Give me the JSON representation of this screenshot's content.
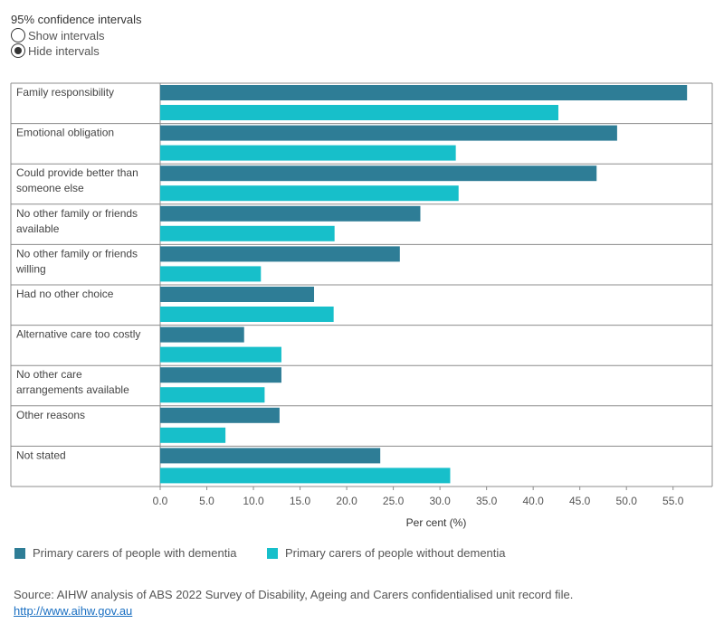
{
  "controls": {
    "title": "95% confidence intervals",
    "options": [
      {
        "label": "Show intervals",
        "selected": false
      },
      {
        "label": "Hide intervals",
        "selected": true
      }
    ]
  },
  "colors": {
    "dementia": "#2e7d96",
    "without_dementia": "#17bfca",
    "grid": "#cccccc",
    "axis": "#333333"
  },
  "chart_data": {
    "type": "bar",
    "orientation": "horizontal",
    "categories": [
      "Family responsibility",
      "Emotional obligation",
      "Could provide better than someone else",
      "No other family or friends available",
      "No other family or friends willing",
      "Had no other choice",
      "Alternative care too costly",
      "No other care arrangements available",
      "Other reasons",
      "Not stated"
    ],
    "category_lines": [
      [
        "Family responsibility"
      ],
      [
        "Emotional obligation"
      ],
      [
        "Could provide better than",
        "someone else"
      ],
      [
        "No other family or friends",
        "available"
      ],
      [
        "No other family or friends",
        "willing"
      ],
      [
        "Had no other choice"
      ],
      [
        "Alternative care too costly"
      ],
      [
        "No other care",
        "arrangements available"
      ],
      [
        "Other reasons"
      ],
      [
        "Not stated"
      ]
    ],
    "series": [
      {
        "name": "Primary carers of people with dementia",
        "values": [
          56.5,
          49.0,
          46.8,
          27.9,
          25.7,
          16.5,
          9.0,
          13.0,
          12.8,
          23.6
        ]
      },
      {
        "name": "Primary carers of people without dementia",
        "values": [
          42.7,
          31.7,
          32.0,
          18.7,
          10.8,
          18.6,
          13.0,
          11.2,
          7.0,
          31.1
        ]
      }
    ],
    "xlabel": "Per cent (%)",
    "xticks": [
      "0.0",
      "5.0",
      "10.0",
      "15.0",
      "20.0",
      "25.0",
      "30.0",
      "35.0",
      "40.0",
      "45.0",
      "50.0",
      "55.0"
    ],
    "xlim": [
      0,
      59.2
    ],
    "grid": false,
    "legend_position": "bottom"
  },
  "footer": {
    "source": "Source: AIHW analysis of ABS 2022 Survey of Disability, Ageing and Carers confidentialised unit record file.",
    "link": "http://www.aihw.gov.au"
  }
}
